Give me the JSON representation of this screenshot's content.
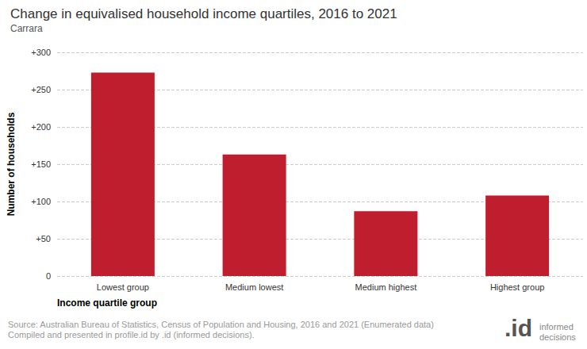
{
  "chart_data": {
    "type": "bar",
    "title": "Change in equivalised household income quartiles, 2016 to 2021",
    "subtitle": "Carrara",
    "x_label": "Income quartile group",
    "y_label": "Number of households",
    "categories": [
      "Lowest group",
      "Medium lowest",
      "Medium highest",
      "Highest group"
    ],
    "values": [
      273,
      163,
      87,
      108
    ],
    "color": "#be1e2d",
    "ylim": [
      0,
      300
    ],
    "yticks": [
      0,
      {
        "value": 50,
        "label": "+50"
      },
      {
        "value": 100,
        "label": "+100"
      },
      {
        "value": 150,
        "label": "+150"
      },
      {
        "value": 200,
        "label": "+200"
      },
      {
        "value": 250,
        "label": "+250"
      },
      {
        "value": 300,
        "label": "+300"
      }
    ],
    "grid": true,
    "source": [
      "Source: Australian Bureau of Statistics, Census of Population and Housing, 2016 and 2021 (Enumerated data)",
      "Compiled and presented in profile.id by .id (informed decisions)."
    ],
    "logo": [
      ".id",
      "informed",
      "decisions"
    ]
  }
}
